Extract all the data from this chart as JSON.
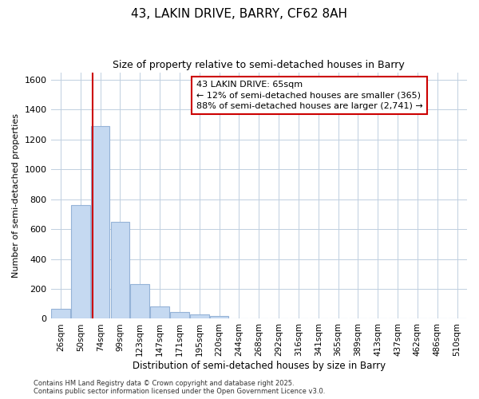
{
  "title": "43, LAKIN DRIVE, BARRY, CF62 8AH",
  "subtitle": "Size of property relative to semi-detached houses in Barry",
  "xlabel": "Distribution of semi-detached houses by size in Barry",
  "ylabel": "Number of semi-detached properties",
  "footer_line1": "Contains HM Land Registry data © Crown copyright and database right 2025.",
  "footer_line2": "Contains public sector information licensed under the Open Government Licence v3.0.",
  "categories": [
    "26sqm",
    "50sqm",
    "74sqm",
    "99sqm",
    "123sqm",
    "147sqm",
    "171sqm",
    "195sqm",
    "220sqm",
    "244sqm",
    "268sqm",
    "292sqm",
    "316sqm",
    "341sqm",
    "365sqm",
    "389sqm",
    "413sqm",
    "437sqm",
    "462sqm",
    "486sqm",
    "510sqm"
  ],
  "values": [
    65,
    760,
    1290,
    650,
    230,
    85,
    45,
    30,
    20,
    0,
    0,
    0,
    0,
    0,
    0,
    0,
    0,
    0,
    0,
    0,
    0
  ],
  "bar_color": "#c5d9f1",
  "bar_edge_color": "#95b3d7",
  "background_color": "#ffffff",
  "plot_bg_color": "#ffffff",
  "grid_color": "#c0cfe0",
  "vline_x_index": 1.6,
  "vline_color": "#cc0000",
  "annotation_text": "43 LAKIN DRIVE: 65sqm\n← 12% of semi-detached houses are smaller (365)\n88% of semi-detached houses are larger (2,741) →",
  "annotation_box_color": "#cc0000",
  "ylim": [
    0,
    1650
  ],
  "yticks": [
    0,
    200,
    400,
    600,
    800,
    1000,
    1200,
    1400,
    1600
  ]
}
